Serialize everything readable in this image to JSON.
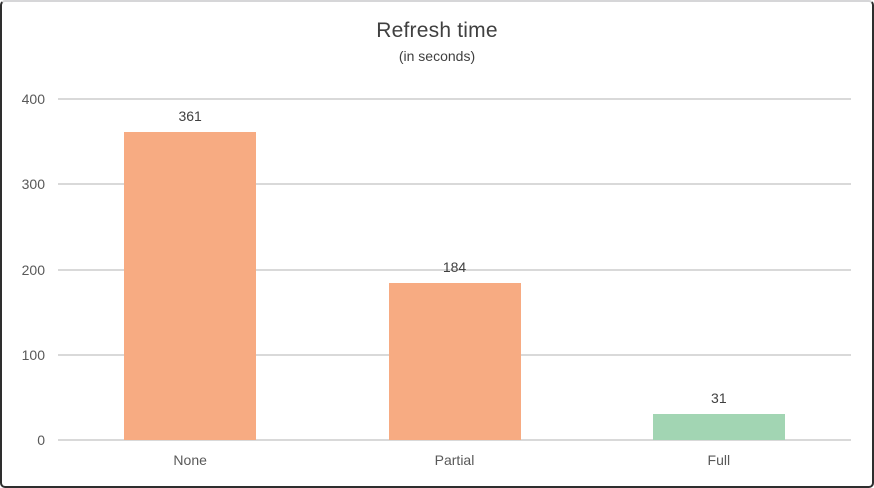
{
  "window": {
    "background": "#ffffff",
    "frame_border_color": "#2e2e2e",
    "frame_top_border_color": "#d6d6d8"
  },
  "chart_data": {
    "type": "bar",
    "title": "Refresh time",
    "subtitle": "(in seconds)",
    "categories": [
      "None",
      "Partial",
      "Full"
    ],
    "values": [
      361,
      184,
      31
    ],
    "value_labels": [
      "361",
      "184",
      "31"
    ],
    "bar_colors": [
      "#f7ab82",
      "#f7ab82",
      "#a2d5b3"
    ],
    "xlabel": "",
    "ylabel": "",
    "ylim": [
      0,
      400
    ],
    "yticks": [
      0,
      100,
      200,
      300,
      400
    ],
    "grid": true,
    "gridline_color": "#d9d9d9",
    "axis_text_color": "#595959",
    "title_color": "#404040",
    "value_label_color": "#404040",
    "legend": false
  }
}
